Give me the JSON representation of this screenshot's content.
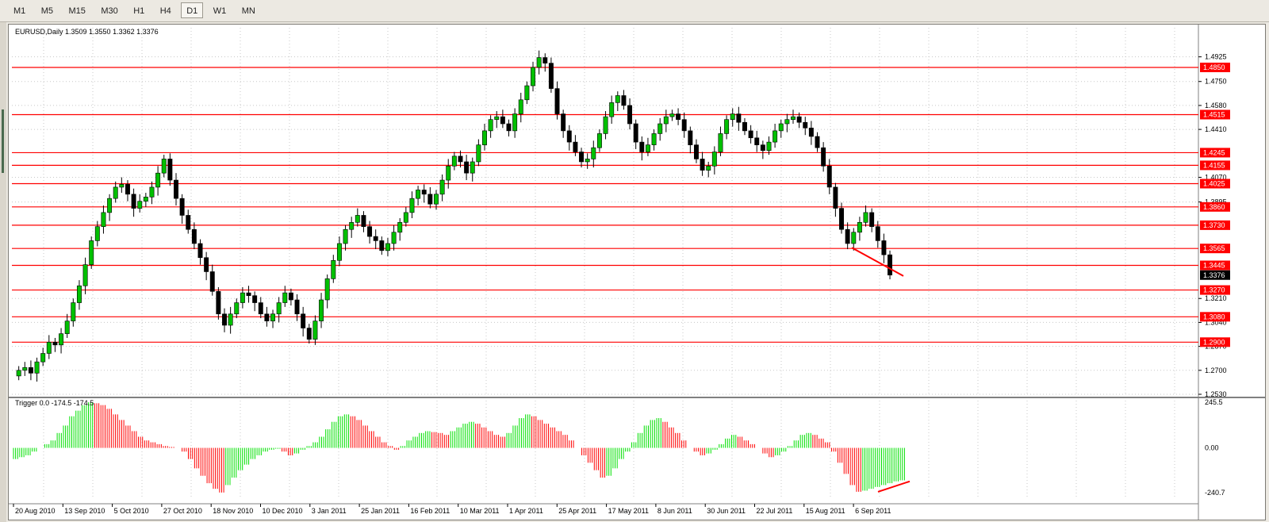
{
  "toolbar": {
    "timeframes": [
      "M1",
      "M5",
      "M15",
      "M30",
      "H1",
      "H4",
      "D1",
      "W1",
      "MN"
    ],
    "active": "D1"
  },
  "chart_data": {
    "type": "candlestick",
    "title": "EURUSD,Daily  1.3509 1.3550 1.3362 1.3376",
    "symbol": "EURUSD",
    "period": "Daily",
    "ohlc": {
      "open": 1.3509,
      "high": 1.355,
      "low": 1.3362,
      "close": 1.3376
    },
    "price_axis_ticks": [
      "1.4925",
      "1.4750",
      "1.4580",
      "1.4410",
      "1.4070",
      "1.3895",
      "1.3210",
      "1.3040",
      "1.2870",
      "1.2700",
      "1.2530"
    ],
    "horizontal_levels": [
      "1.4850",
      "1.4515",
      "1.4245",
      "1.4155",
      "1.4025",
      "1.3860",
      "1.3730",
      "1.3565",
      "1.3445",
      "1.3270",
      "1.3080",
      "1.2900"
    ],
    "current_price": "1.3376",
    "level_color": "#ff0000",
    "up_color": "#00c000",
    "down_color": "#ff0000",
    "date_labels": [
      "20 Aug 2010",
      "13 Sep 2010",
      "5 Oct 2010",
      "27 Oct 2010",
      "18 Nov 2010",
      "10 Dec 2010",
      "3 Jan 2011",
      "25 Jan 2011",
      "16 Feb 2011",
      "10 Mar 2011",
      "1 Apr 2011",
      "25 Apr 2011",
      "17 May 2011",
      "8 Jun 2011",
      "30 Jun 2011",
      "22 Jul 2011",
      "15 Aug 2011",
      "6 Sep 2011"
    ],
    "close_series": [
      1.27,
      1.272,
      1.268,
      1.276,
      1.282,
      1.29,
      1.288,
      1.296,
      1.305,
      1.318,
      1.33,
      1.345,
      1.362,
      1.372,
      1.382,
      1.392,
      1.4,
      1.402,
      1.395,
      1.385,
      1.39,
      1.393,
      1.4,
      1.41,
      1.42,
      1.405,
      1.392,
      1.38,
      1.37,
      1.36,
      1.35,
      1.34,
      1.326,
      1.31,
      1.302,
      1.31,
      1.318,
      1.325,
      1.323,
      1.318,
      1.31,
      1.305,
      1.31,
      1.318,
      1.325,
      1.32,
      1.31,
      1.3,
      1.292,
      1.305,
      1.32,
      1.335,
      1.348,
      1.36,
      1.37,
      1.375,
      1.38,
      1.372,
      1.365,
      1.362,
      1.355,
      1.36,
      1.368,
      1.375,
      1.382,
      1.392,
      1.398,
      1.395,
      1.388,
      1.395,
      1.405,
      1.415,
      1.422,
      1.418,
      1.41,
      1.418,
      1.43,
      1.44,
      1.448,
      1.45,
      1.445,
      1.44,
      1.452,
      1.462,
      1.472,
      1.485,
      1.492,
      1.488,
      1.47,
      1.452,
      1.44,
      1.432,
      1.425,
      1.418,
      1.42,
      1.428,
      1.438,
      1.45,
      1.46,
      1.465,
      1.458,
      1.445,
      1.432,
      1.425,
      1.43,
      1.438,
      1.445,
      1.45,
      1.452,
      1.448,
      1.44,
      1.43,
      1.42,
      1.412,
      1.415,
      1.425,
      1.438,
      1.448,
      1.452,
      1.446,
      1.44,
      1.435,
      1.43,
      1.426,
      1.432,
      1.44,
      1.445,
      1.448,
      1.45,
      1.446,
      1.442,
      1.436,
      1.428,
      1.415,
      1.4,
      1.385,
      1.37,
      1.36,
      1.368,
      1.375,
      1.382,
      1.372,
      1.362,
      1.352,
      1.3376
    ],
    "indicator": {
      "name": "Trigger",
      "label": "Trigger 0.0 -174.5 -174.5",
      "axis_ticks": [
        "245.5",
        "0.00",
        "-240.7"
      ],
      "values": [
        -60,
        -50,
        -40,
        -20,
        0,
        20,
        40,
        80,
        120,
        170,
        200,
        230,
        245,
        240,
        230,
        210,
        180,
        150,
        120,
        90,
        60,
        40,
        30,
        20,
        10,
        5,
        0,
        -20,
        -60,
        -110,
        -150,
        -190,
        -220,
        -240,
        -200,
        -160,
        -120,
        -90,
        -60,
        -40,
        -20,
        -10,
        -5,
        -20,
        -40,
        -30,
        -10,
        10,
        30,
        60,
        100,
        140,
        170,
        180,
        170,
        150,
        120,
        90,
        60,
        30,
        10,
        -10,
        10,
        40,
        60,
        80,
        90,
        85,
        80,
        70,
        90,
        110,
        130,
        140,
        130,
        110,
        90,
        70,
        60,
        80,
        120,
        160,
        180,
        170,
        150,
        130,
        110,
        90,
        70,
        40,
        0,
        -40,
        -80,
        -120,
        -160,
        -150,
        -110,
        -60,
        -20,
        30,
        80,
        120,
        150,
        160,
        140,
        110,
        80,
        40,
        0,
        -20,
        -40,
        -30,
        -10,
        20,
        50,
        70,
        60,
        40,
        20,
        0,
        -30,
        -50,
        -40,
        -20,
        10,
        40,
        70,
        80,
        70,
        50,
        30,
        -20,
        -80,
        -140,
        -200,
        -236,
        -230,
        -220,
        -210,
        -200,
        -190,
        -180,
        -174.5
      ]
    }
  }
}
